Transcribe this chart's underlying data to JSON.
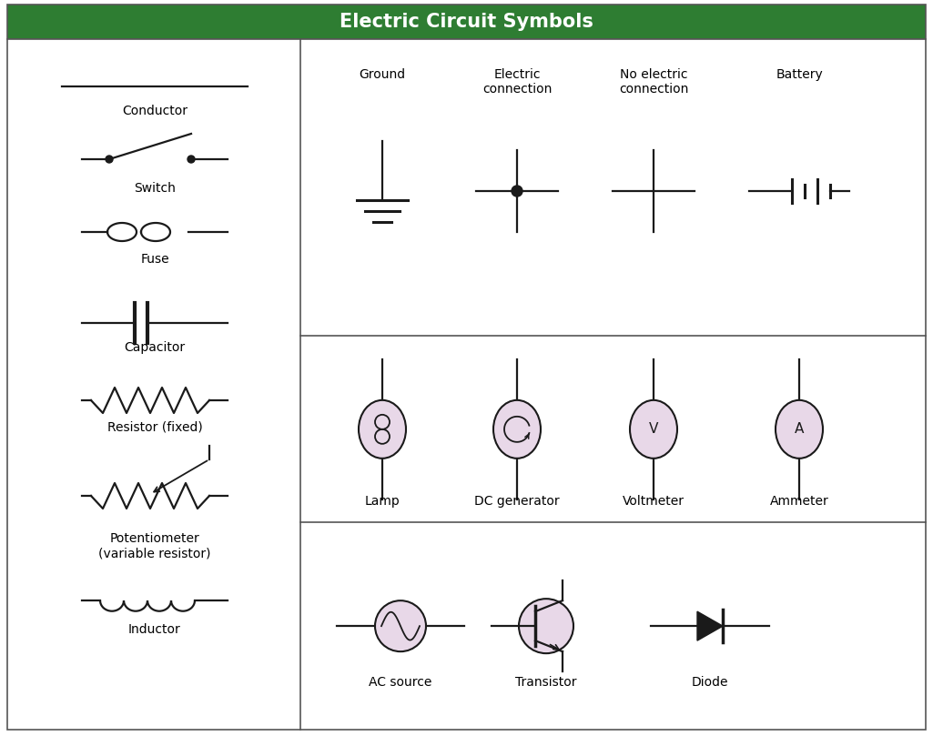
{
  "title": "Electric Circuit Symbols",
  "title_bg": "#2e7d32",
  "title_color": "#ffffff",
  "border_color": "#555555",
  "line_color": "#1a1a1a",
  "symbol_fill": "#e8d8e8",
  "figsize": [
    10.25,
    8.09
  ],
  "dpi": 100,
  "left_labels": [
    "Conductor",
    "Switch",
    "Fuse",
    "Capacitor",
    "Resistor (fixed)",
    "Potentiometer\n(variable resistor)",
    "Inductor"
  ],
  "top_labels": [
    "Ground",
    "Electric\nconnection",
    "No electric\nconnection",
    "Battery"
  ],
  "mid_labels": [
    "Lamp",
    "DC generator",
    "Voltmeter",
    "Ammeter"
  ],
  "bot_labels": [
    "AC source",
    "Transistor",
    "Diode"
  ]
}
